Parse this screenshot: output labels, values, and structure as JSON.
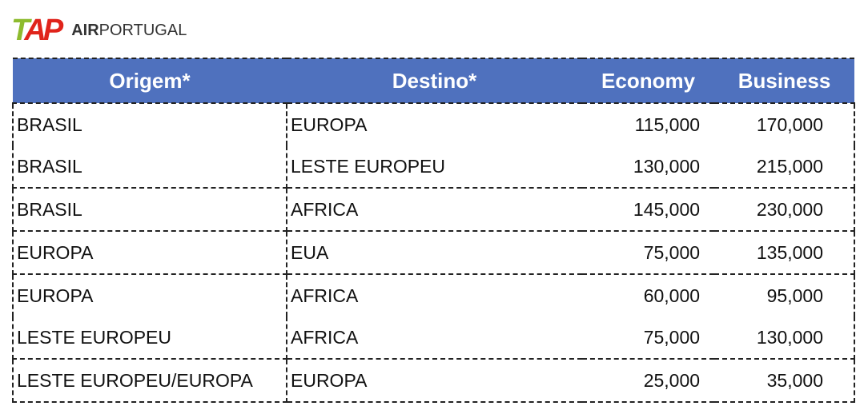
{
  "logo": {
    "mark": "TAP",
    "air": "AIR",
    "name": "PORTUGAL"
  },
  "table": {
    "header": [
      "Origem*",
      "Destino*",
      "Economy",
      "Business"
    ],
    "rows": [
      [
        "BRASIL",
        "EUROPA",
        "115,000",
        "170,000"
      ],
      [
        "BRASIL",
        "LESTE EUROPEU",
        "130,000",
        "215,000"
      ],
      [
        "BRASIL",
        "AFRICA",
        "145,000",
        "230,000"
      ],
      [
        "EUROPA",
        "EUA",
        "75,000",
        "135,000"
      ],
      [
        "EUROPA",
        "AFRICA",
        "60,000",
        "95,000"
      ],
      [
        "LESTE EUROPEU",
        "AFRICA",
        "75,000",
        "130,000"
      ],
      [
        "LESTE EUROPEU/EUROPA",
        "EUROPA",
        "25,000",
        "35,000"
      ]
    ]
  }
}
